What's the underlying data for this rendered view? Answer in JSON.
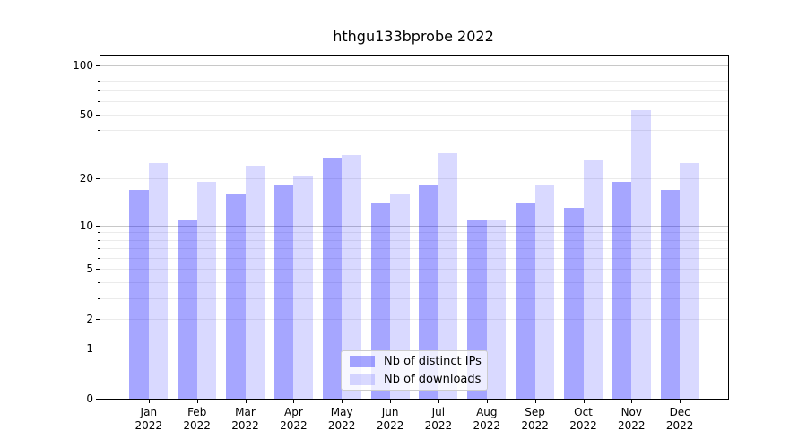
{
  "title": "hthgu133bprobe 2022",
  "chart_data": {
    "type": "bar",
    "title": "hthgu133bprobe 2022",
    "categories": [
      "Jan",
      "Feb",
      "Mar",
      "Apr",
      "May",
      "Jun",
      "Jul",
      "Aug",
      "Sep",
      "Oct",
      "Nov",
      "Dec"
    ],
    "year_label": "2022",
    "series": [
      {
        "name": "Nb of distinct IPs",
        "color": "rgba(0,0,255,0.35)",
        "hex_on_white": "#a6a6fa",
        "values": [
          17,
          11,
          16,
          18,
          27,
          14,
          18,
          11,
          14,
          13,
          19,
          17
        ]
      },
      {
        "name": "Nb of downloads",
        "color": "rgba(0,0,255,0.15)",
        "hex_on_white": "#d9d9ff",
        "values": [
          25,
          19,
          24,
          21,
          28,
          16,
          29,
          11,
          18,
          26,
          53,
          25
        ]
      }
    ],
    "yscale": "log1p",
    "yticks": [
      0,
      1,
      2,
      5,
      10,
      20,
      50,
      100
    ],
    "minor_yticks": [
      3,
      4,
      6,
      7,
      8,
      9,
      30,
      40,
      60,
      70,
      80,
      90
    ],
    "ylim": [
      0,
      114
    ],
    "xlabel": "",
    "ylabel": "",
    "grid": "on",
    "legend": {
      "position": "lower-center"
    }
  },
  "colors": {
    "grid_major": "#c8c8c8",
    "grid_minor": "#ebebeb",
    "spine": "#000000",
    "background": "#ffffff"
  }
}
